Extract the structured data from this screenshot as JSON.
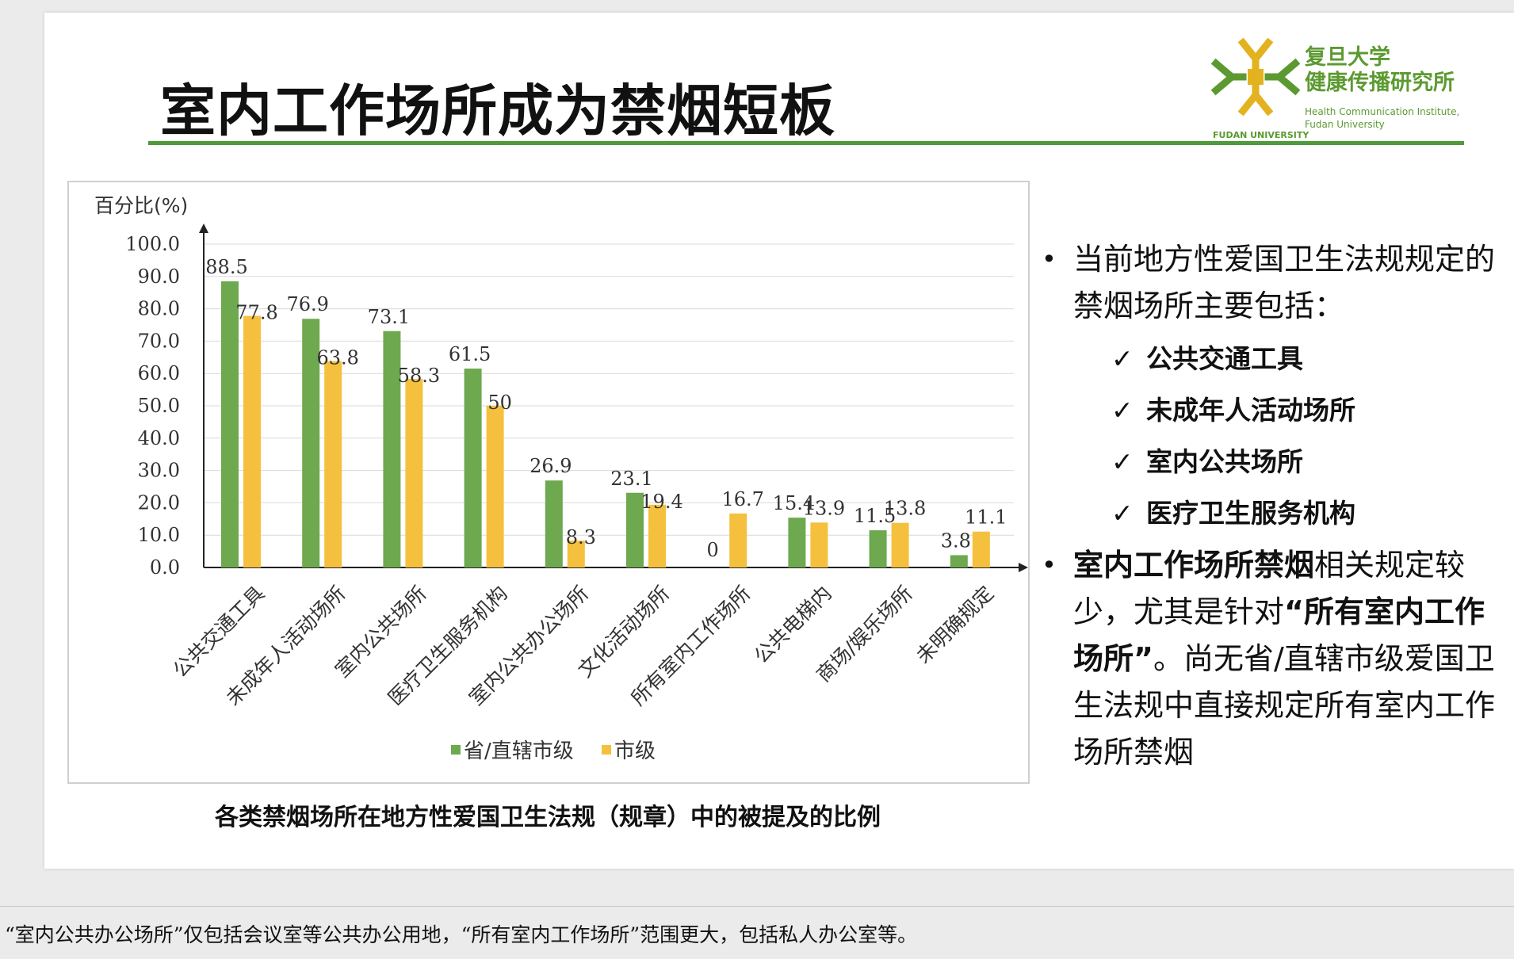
{
  "slide": {
    "title": "室内工作场所成为禁烟短板",
    "logo": {
      "cn_line1": "复旦大学",
      "cn_line2": "健康传播研究所",
      "en_line1": "Health Communication Institute,",
      "en_line2": "Fudan University",
      "fudan": "FUDAN UNIVERSITY"
    },
    "caption": "各类禁烟场所在地方性爱国卫生法规（规章）中的被提及的比例",
    "bullets": {
      "b1_text": "当前地方性爱国卫生法规规定的禁烟场所主要包括：",
      "checks": [
        "公共交通工具",
        "未成年人活动场所",
        "室内公共场所",
        "医疗卫生服务机构"
      ],
      "b2_bold1": "室内工作场所禁烟",
      "b2_text1": "相关规定较少，尤其是针对",
      "b2_bold2": "“所有室内工作场所”",
      "b2_text2": "。尚无省/直辖市级爱国卫生法规中直接规定所有室内工作场所禁烟"
    },
    "footnote": "“室内公共办公场所”仅包括会议室等公共办公用地，“所有室内工作场所”范围更大，包括私人办公室等。"
  },
  "colors": {
    "green": "#6ea84f",
    "yellow": "#f5c03d",
    "rule": "#4f9a3a",
    "brand": "#5c9a31"
  },
  "chart_data": {
    "type": "bar",
    "ylabel": "百分比(%)",
    "ylim": [
      0,
      100
    ],
    "yticks": [
      "0.0",
      "10.0",
      "20.0",
      "30.0",
      "40.0",
      "50.0",
      "60.0",
      "70.0",
      "80.0",
      "90.0",
      "100.0"
    ],
    "grid": true,
    "legend_position": "bottom",
    "categories": [
      "公共交通工具",
      "未成年人活动场所",
      "室内公共场所",
      "医疗卫生服务机构",
      "室内公共办公场所",
      "文化活动场所",
      "所有室内工作场所",
      "公共电梯内",
      "商场/娱乐场所",
      "未明确规定"
    ],
    "series": [
      {
        "name": "省/直辖市级",
        "color": "#6ea84f",
        "values": [
          88.5,
          76.9,
          73.1,
          61.5,
          26.9,
          23.1,
          0,
          15.4,
          11.5,
          3.8
        ],
        "labels": [
          "88.5",
          "76.9",
          "73.1",
          "61.5",
          "26.9",
          "23.1",
          "0",
          "15.4",
          "11.5",
          "3.8"
        ]
      },
      {
        "name": "市级",
        "color": "#f5c03d",
        "values": [
          77.8,
          63.8,
          58.3,
          50,
          8.3,
          19.4,
          16.7,
          13.9,
          13.8,
          11.1
        ],
        "labels": [
          "77.8",
          "63.8",
          "58.3",
          "50",
          "8.3",
          "19.4",
          "16.7",
          "13.9",
          "13.8",
          "11.1"
        ]
      }
    ]
  }
}
